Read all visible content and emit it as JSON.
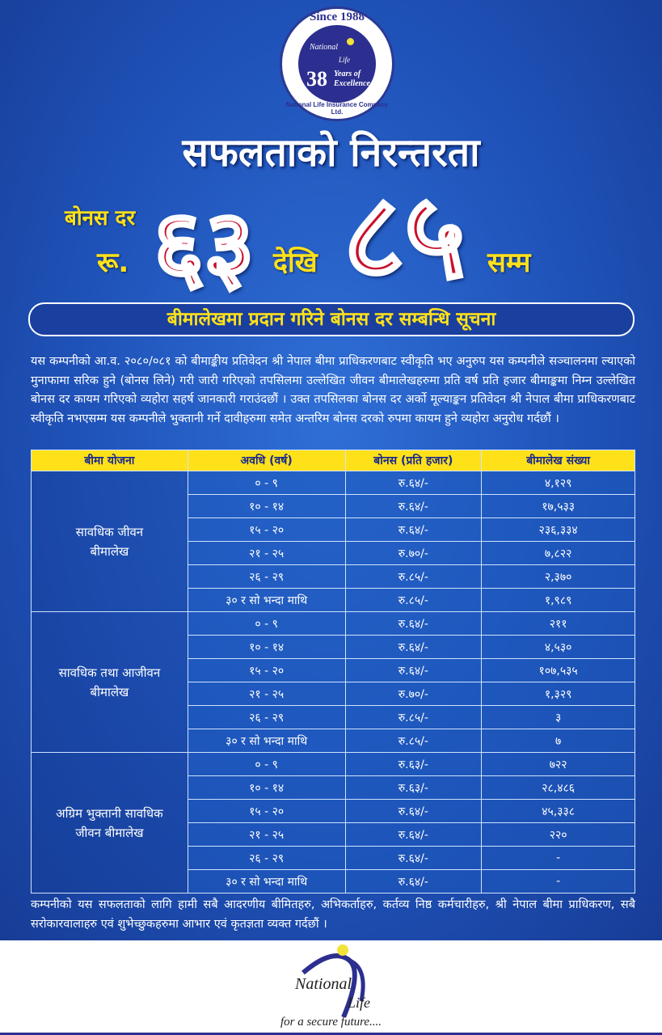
{
  "logo": {
    "since": "Since 1988",
    "brand_top": "National",
    "brand_bottom": "Life",
    "years": "38",
    "years_text_1": "Years of",
    "years_text_2": "Excellence",
    "ring_text": "National Life Insurance Company Ltd."
  },
  "title": "सफलताको निरन्तरता",
  "bonus": {
    "label": "बोनस दर",
    "currency": "रू.",
    "low": "६३",
    "from_word": "देखि",
    "high": "८५",
    "to_word": "सम्म"
  },
  "subtitle": "बीमालेखमा प्रदान गरिने बोनस दर सम्बन्धि सूचना",
  "intro": "यस कम्पनीको आ.व. २०८०/०८१ को बीमाङ्कीय प्रतिवेदन श्री नेपाल बीमा प्राधिकरणबाट स्वीकृति भए अनुरुप यस कम्पनीले सञ्चालनमा ल्याएको मुनाफामा सरिक हुने (बोनस लिने) गरी जारी गरिएको तपसिलमा उल्लेखित जीवन बीमालेखहरुमा प्रति वर्ष प्रति हजार बीमाङ्कमा निम्न उल्लेखित बोनस दर कायम गरिएको व्यहोरा सहर्ष जानकारी गराउंदछौं । उक्त तपसिलका बोनस दर अर्को मूल्याङ्कन प्रतिवेदन श्री नेपाल बीमा प्राधिकरणबाट स्वीकृति नभएसम्म यस कम्पनीले भुक्तानी गर्ने दावीहरुमा समेत अन्तरिम बोनस दरको रुपमा कायम हुने व्यहोरा अनुरोध गर्दछौं ।",
  "table": {
    "headers": [
      "बीमा योजना",
      "अवधि (वर्ष)",
      "बोनस (प्रति हजार)",
      "बीमालेख संख्या"
    ],
    "groups": [
      {
        "plan": "सावधिक जीवन बीमालेख",
        "rows": [
          [
            "० - ९",
            "रु.६४/-",
            "४,१२९"
          ],
          [
            "१० - १४",
            "रु.६४/-",
            "१७,५३३"
          ],
          [
            "१५ - २०",
            "रु.६४/-",
            "२३६,३३४"
          ],
          [
            "२१ - २५",
            "रु.७०/-",
            "७,८२२"
          ],
          [
            "२६ - २९",
            "रु.८५/-",
            "२,३७०"
          ],
          [
            "३० र सो भन्दा माथि",
            "रु.८५/-",
            "१,९८९"
          ]
        ]
      },
      {
        "plan": "सावधिक तथा आजीवन बीमालेख",
        "rows": [
          [
            "० - ९",
            "रु.६४/-",
            "२११"
          ],
          [
            "१० - १४",
            "रु.६४/-",
            "४,५३०"
          ],
          [
            "१५ - २०",
            "रु.६४/-",
            "१०७,५३५"
          ],
          [
            "२१ - २५",
            "रु.७०/-",
            "१,३२९"
          ],
          [
            "२६ - २९",
            "रु.८५/-",
            "३"
          ],
          [
            "३० र सो भन्दा माथि",
            "रु.८५/-",
            "७"
          ]
        ]
      },
      {
        "plan": "अग्रिम भुक्तानी सावधिक जीवन बीमालेख",
        "rows": [
          [
            "० - ९",
            "रु.६३/-",
            "७२२"
          ],
          [
            "१० - १४",
            "रु.६३/-",
            "२८,४८६"
          ],
          [
            "१५ - २०",
            "रु.६४/-",
            "४५,३३८"
          ],
          [
            "२१ - २५",
            "रु.६४/-",
            "२२०"
          ],
          [
            "२६ - २९",
            "रु.६४/-",
            "-"
          ],
          [
            "३० र सो भन्दा माथि",
            "रु.६४/-",
            "-"
          ]
        ]
      }
    ]
  },
  "thanks": "कम्पनीको यस सफलताको लागि हामी सबै आदरणीय बीमितहरु, अभिकर्ताहरु, कर्तव्य निष्ठ कर्मचारीहरु, श्री नेपाल बीमा प्राधिकरण, सबै सरोकारवालाहरु एवं शुभेच्छुकहरुमा आभार एवं कृतज्ञता व्यक्त गर्दछौं ।",
  "footer": {
    "brand_top": "National",
    "brand_bottom": "Life",
    "tagline": "for a secure future...."
  },
  "colors": {
    "background": "#1f52b8",
    "accent_yellow": "#ffe11a",
    "numeral_red": "#c8102e",
    "logo_navy": "#2c2f8f"
  }
}
